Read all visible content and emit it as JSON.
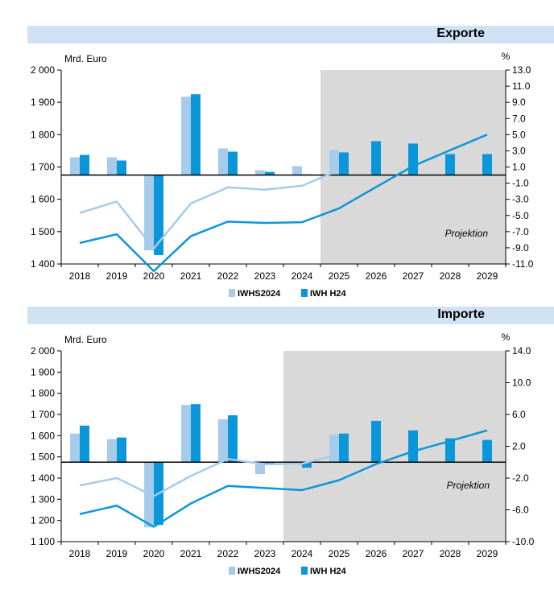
{
  "chart_data": [
    {
      "type": "bar+line",
      "title": "Exporte",
      "left_axis_label": "Mrd. Euro",
      "right_axis_label": "%",
      "projection_label": "Projektion",
      "projection_start": "2025",
      "categories": [
        "2018",
        "2019",
        "2020",
        "2021",
        "2022",
        "2023",
        "2024",
        "2025",
        "2026",
        "2027",
        "2028",
        "2029"
      ],
      "left_ylim": [
        1400,
        2000
      ],
      "left_ticks": [
        "2 000",
        "1 900",
        "1 800",
        "1 700",
        "1 600",
        "1 500",
        "1 400"
      ],
      "right_ylim": [
        -11,
        13
      ],
      "right_ticks": [
        "13.0",
        "11.0",
        "9.0",
        "7.0",
        "5.0",
        "3.0",
        "1.0",
        "-1.0",
        "-3.0",
        "-5.0",
        "-7.0",
        "-9.0",
        "-11.0"
      ],
      "bar_baseline_pct": 0,
      "legend": [
        "IWHS2024",
        "IWH H24"
      ],
      "series": [
        {
          "name": "IWHS2024",
          "kind": "bar",
          "axis": "right",
          "color": "#a6cbeb",
          "values": [
            2.2,
            2.2,
            -9.3,
            9.7,
            3.3,
            0.6,
            1.1,
            3.1,
            null,
            null,
            null,
            null
          ]
        },
        {
          "name": "IWH H24",
          "kind": "bar",
          "axis": "right",
          "color": "#0a97d9",
          "values": [
            2.5,
            1.8,
            -9.9,
            10.0,
            2.9,
            0.4,
            0.1,
            2.8,
            4.2,
            3.9,
            2.6,
            2.6
          ]
        },
        {
          "name": "IWHS2024",
          "kind": "line",
          "axis": "left",
          "color": "#a6cbeb",
          "values": [
            1558,
            1593,
            1448,
            1587,
            1637,
            1630,
            1642,
            1690,
            null,
            null,
            null,
            null
          ]
        },
        {
          "name": "IWH H24",
          "kind": "line",
          "axis": "left",
          "color": "#0a97d9",
          "values": [
            1465,
            1492,
            1378,
            1486,
            1531,
            1527,
            1529,
            1572,
            1638,
            1703,
            1752,
            1800
          ]
        }
      ]
    },
    {
      "type": "bar+line",
      "title": "Importe",
      "left_axis_label": "Mrd. Euro",
      "right_axis_label": "%",
      "projection_label": "Projektion",
      "projection_start": "2024",
      "categories": [
        "2018",
        "2019",
        "2020",
        "2021",
        "2022",
        "2023",
        "2024",
        "2025",
        "2026",
        "2027",
        "2028",
        "2029"
      ],
      "left_ylim": [
        1100,
        2000
      ],
      "left_ticks": [
        "2 000",
        "1 900",
        "1 800",
        "1 700",
        "1 600",
        "1 500",
        "1 400",
        "1 300",
        "1 200",
        "1 100"
      ],
      "right_ylim": [
        -10,
        14
      ],
      "right_ticks": [
        "14.0",
        "10.0",
        "6.0",
        "2.0",
        "-2.0",
        "-6.0",
        "-10.0"
      ],
      "bar_baseline_pct": 0,
      "legend": [
        "IWHS2024",
        "IWH H24"
      ],
      "series": [
        {
          "name": "IWHS2024",
          "kind": "bar",
          "axis": "right",
          "color": "#a6cbeb",
          "values": [
            3.6,
            2.9,
            -8.2,
            7.2,
            5.4,
            -1.5,
            -0.1,
            3.5,
            null,
            null,
            null,
            null
          ]
        },
        {
          "name": "IWH H24",
          "kind": "bar",
          "axis": "right",
          "color": "#0a97d9",
          "values": [
            4.6,
            3.1,
            -7.9,
            7.3,
            5.9,
            -0.3,
            -0.7,
            3.6,
            5.2,
            4.0,
            3.0,
            2.8
          ]
        },
        {
          "name": "IWHS2024",
          "kind": "line",
          "axis": "left",
          "color": "#a6cbeb",
          "values": [
            1365,
            1400,
            1315,
            1410,
            1490,
            1465,
            1468,
            1512,
            null,
            null,
            null,
            null
          ]
        },
        {
          "name": "IWH H24",
          "kind": "line",
          "axis": "left",
          "color": "#0a97d9",
          "values": [
            1230,
            1270,
            1170,
            1280,
            1363,
            1353,
            1343,
            1390,
            1466,
            1526,
            1575,
            1625
          ]
        }
      ]
    }
  ]
}
